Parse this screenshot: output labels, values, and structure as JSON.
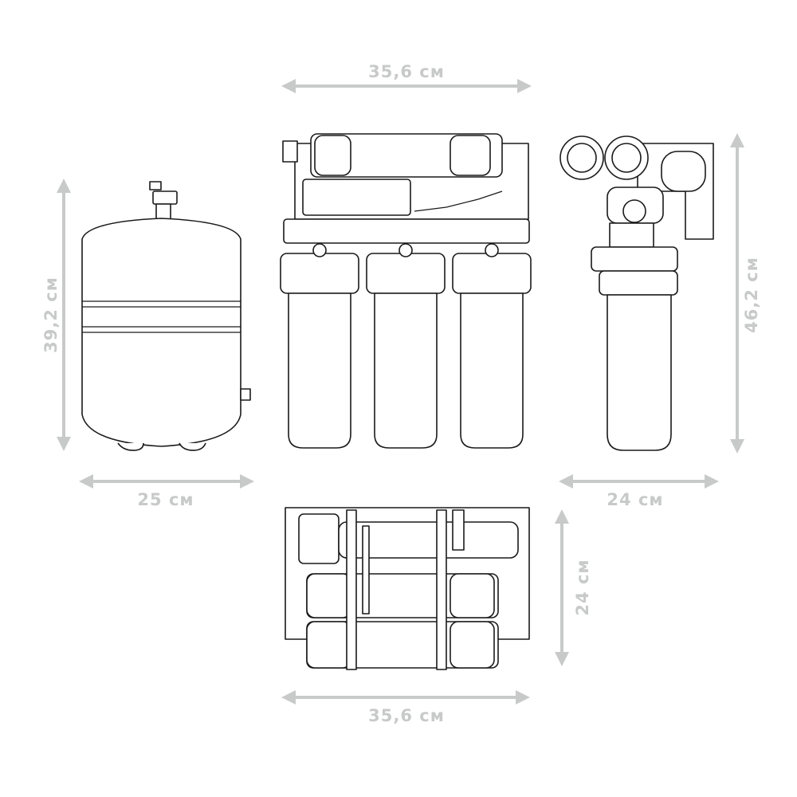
{
  "dimensions": {
    "front_width": "35,6 см",
    "tank_height": "39,2 см",
    "tank_width": "25 см",
    "side_height": "46,2 см",
    "side_depth": "24 см",
    "top_depth": "24 см",
    "top_width": "35,6 см"
  },
  "colors": {
    "dimension": "#c8cac9",
    "outline": "#1a1a1a"
  }
}
